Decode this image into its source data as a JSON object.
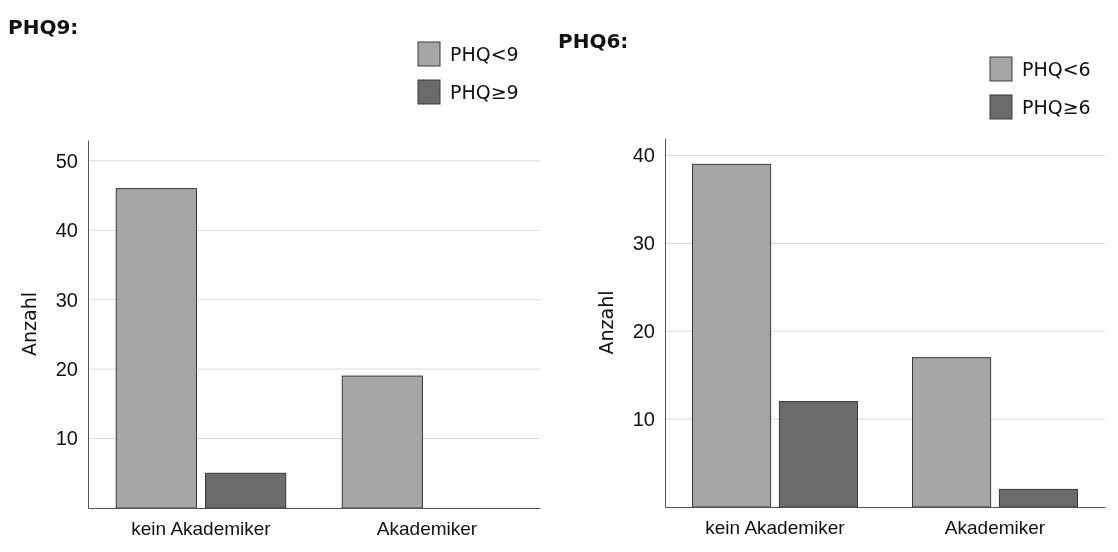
{
  "chart_data": [
    {
      "type": "bar",
      "title": "PHQ9:",
      "ylabel": "Anzahl",
      "categories": [
        "kein Akademiker",
        "Akademiker"
      ],
      "series": [
        {
          "name": "PHQ<9",
          "color": "#a6a6a6",
          "values": [
            46,
            19
          ]
        },
        {
          "name": "PHQ≥9",
          "color": "#6b6b6b",
          "values": [
            5,
            0
          ]
        }
      ],
      "ylim": [
        0,
        53
      ],
      "yticks": [
        10,
        20,
        30,
        40,
        50
      ],
      "grid": "y",
      "legend": "top right"
    },
    {
      "type": "bar",
      "title": "PHQ6:",
      "ylabel": "Anzahl",
      "categories": [
        "kein Akademiker",
        "Akademiker"
      ],
      "series": [
        {
          "name": "PHQ<6",
          "color": "#a6a6a6",
          "values": [
            39,
            17
          ]
        },
        {
          "name": "PHQ≥6",
          "color": "#6b6b6b",
          "values": [
            12,
            2
          ]
        }
      ],
      "ylim": [
        0,
        42
      ],
      "yticks": [
        10,
        20,
        30,
        40
      ],
      "grid": "y",
      "legend": "top right"
    }
  ]
}
